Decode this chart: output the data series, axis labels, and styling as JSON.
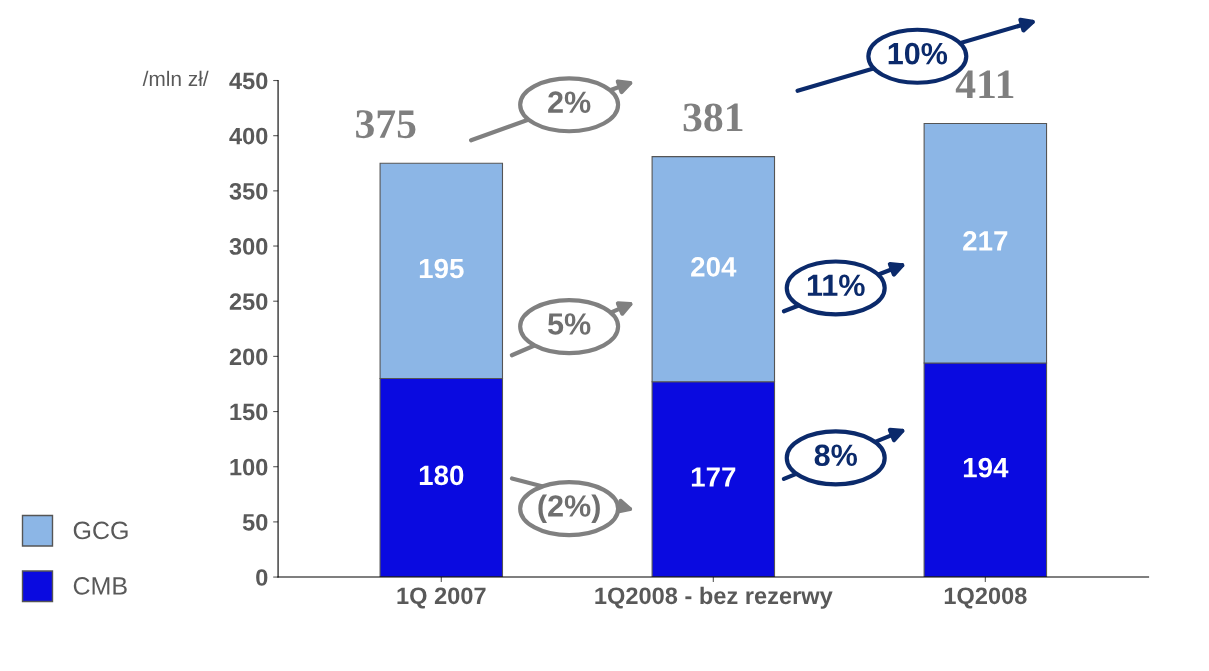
{
  "chart_data": {
    "type": "bar",
    "stacked": true,
    "ylabel": "/mln zł/",
    "categories": [
      "1Q 2007",
      "1Q2008 - bez rezerwy",
      "1Q2008"
    ],
    "series": [
      {
        "name": "CMB",
        "color": "#0a0ae0",
        "values": [
          180,
          177,
          194
        ]
      },
      {
        "name": "GCG",
        "color": "#8cb6e6",
        "values": [
          195,
          204,
          217
        ]
      }
    ],
    "totals": [
      "375",
      "381",
      "411"
    ],
    "data_labels": true,
    "ylim": [
      0,
      450
    ],
    "yticks": [
      0,
      50,
      100,
      150,
      200,
      250,
      300,
      350,
      400,
      450
    ],
    "grid": false,
    "legend": "bottom left",
    "annotations": [
      "2%",
      "10%",
      "5%",
      "11%",
      "(2%)",
      "8%"
    ]
  }
}
